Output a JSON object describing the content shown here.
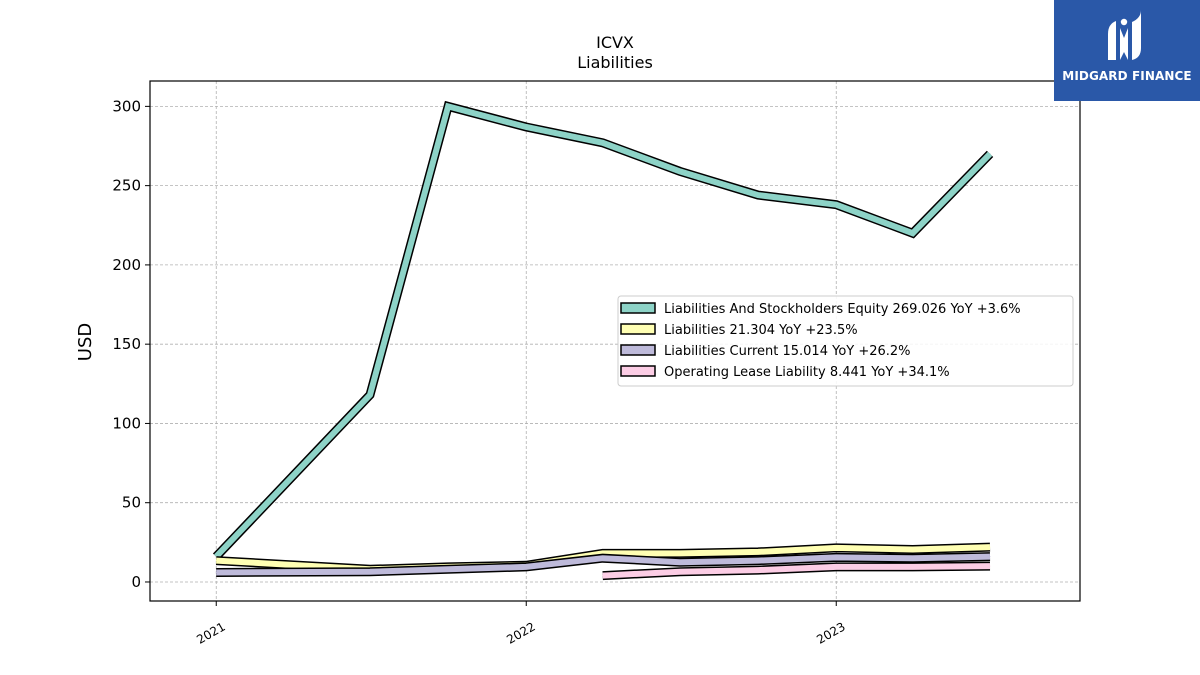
{
  "brand": {
    "name": "MIDGARD FINANCE",
    "logo_icon": "midgard-logo-icon",
    "color": "#2a58a8"
  },
  "chart_data": {
    "type": "line",
    "title": "ICVX",
    "subtitle": "Liabilities",
    "xlabel": "",
    "ylabel": "USD",
    "x_ticks": [
      "2021",
      "2022",
      "2023"
    ],
    "y_ticks": [
      0,
      50,
      100,
      150,
      200,
      250,
      300
    ],
    "ylim": [
      -12,
      316
    ],
    "xlim": [
      "2020-10-15",
      "2023-10-15"
    ],
    "grid": true,
    "legend_position": "center-right",
    "series": [
      {
        "name": "Liabilities And Stockholders Equity",
        "legend": "Liabilities And Stockholders Equity  269.026 YoY +3.6%",
        "color": "#8dd3c7",
        "x": [
          "2021-01-01",
          "2021-07-01",
          "2021-10-01",
          "2022-01-01",
          "2022-04-01",
          "2022-07-01",
          "2022-10-01",
          "2023-01-01",
          "2023-04-01",
          "2023-07-01"
        ],
        "y": [
          16,
          118,
          300,
          287,
          277,
          259,
          244,
          238,
          220,
          270
        ]
      },
      {
        "name": "Liabilities",
        "legend": "Liabilities  21.304 YoY +23.5%",
        "color": "#ffffb3",
        "x": [
          "2021-01-01",
          "2021-07-01",
          "2021-10-01",
          "2022-01-01",
          "2022-04-01",
          "2022-07-01",
          "2022-10-01",
          "2023-01-01",
          "2023-04-01",
          "2023-07-01"
        ],
        "y": [
          13.5,
          8,
          9.5,
          10.5,
          18,
          18,
          19,
          21.5,
          20.5,
          22
        ]
      },
      {
        "name": "Liabilities Current",
        "legend": "Liabilities Current  15.014 YoY +26.2%",
        "color": "#bebada",
        "x": [
          "2021-01-01",
          "2021-07-01",
          "2021-10-01",
          "2022-01-01",
          "2022-04-01",
          "2022-07-01",
          "2022-10-01",
          "2023-01-01",
          "2023-04-01",
          "2023-07-01"
        ],
        "y": [
          6,
          6.5,
          8,
          9.5,
          15,
          12.5,
          13.5,
          15.5,
          15,
          16
        ]
      },
      {
        "name": "Operating Lease Liability",
        "legend": "Operating Lease Liability  8.441 YoY +34.1%",
        "color": "#fccde5",
        "x": [
          "2022-04-01",
          "2022-07-01",
          "2022-10-01",
          "2023-01-01",
          "2023-04-01",
          "2023-07-01"
        ],
        "y": [
          4,
          6.5,
          7.5,
          9.5,
          9.5,
          10
        ]
      }
    ]
  }
}
